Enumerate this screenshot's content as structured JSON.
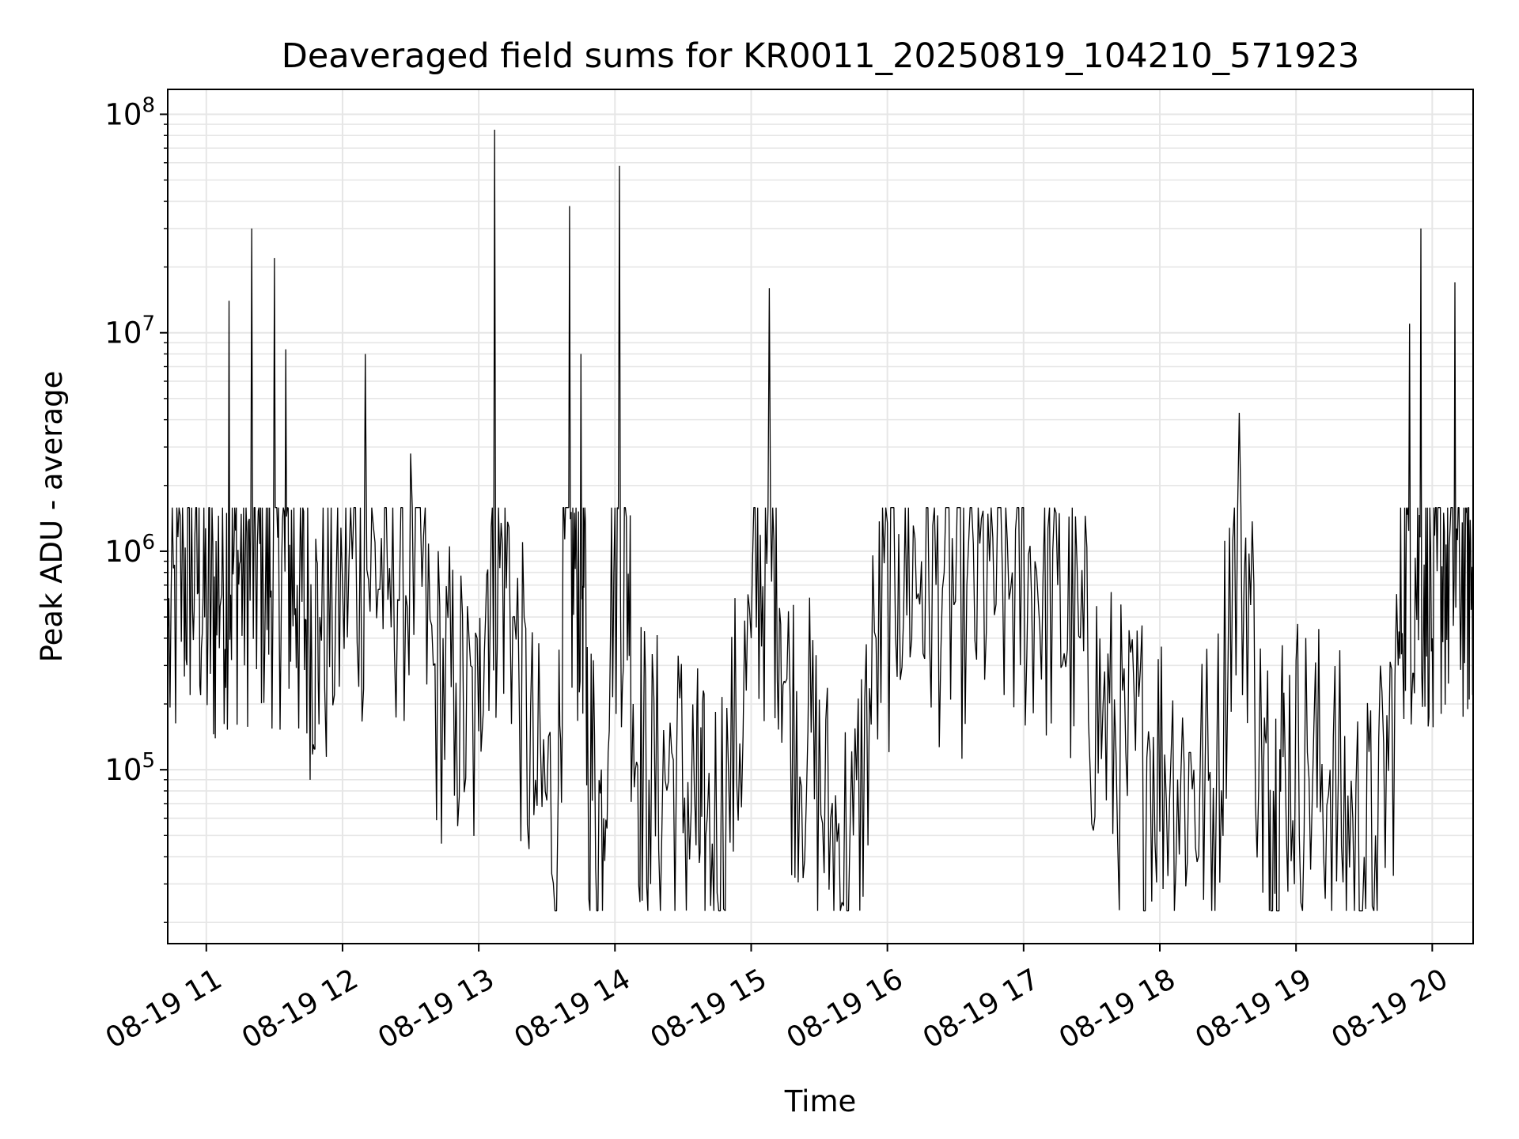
{
  "chart_data": {
    "type": "line",
    "title": "Deaveraged field sums for KR0011_20250819_104210_571923",
    "xlabel": "Time",
    "ylabel": "Peak ADU - average",
    "yscale": "log",
    "xlim": [
      "08-19 10:43",
      "08-19 20:18"
    ],
    "ylim": [
      16000,
      130000000
    ],
    "grid": true,
    "grid_minor": true,
    "line_color": "#000000",
    "grid_color": "#e6e6e6",
    "x_ticks": [
      "08-19 11",
      "08-19 12",
      "08-19 13",
      "08-19 14",
      "08-19 15",
      "08-19 16",
      "08-19 17",
      "08-19 18",
      "08-19 19",
      "08-19 20"
    ],
    "y_ticks": [
      {
        "base": "10",
        "exp": "5"
      },
      {
        "base": "10",
        "exp": "6"
      },
      {
        "base": "10",
        "exp": "7"
      },
      {
        "base": "10",
        "exp": "8"
      }
    ],
    "series": [
      {
        "x": [
          "08-19 10:43",
          "08-19 10:50",
          "08-19 10:55",
          "08-19 11:00",
          "08-19 11:05",
          "08-19 11:10",
          "08-19 11:15",
          "08-19 11:20",
          "08-19 11:25",
          "08-19 11:30",
          "08-19 11:35",
          "08-19 11:40",
          "08-19 11:45",
          "08-19 11:50",
          "08-19 12:00",
          "08-19 12:10",
          "08-19 12:20",
          "08-19 12:30",
          "08-19 12:40",
          "08-19 12:50",
          "08-19 13:00",
          "08-19 13:07",
          "08-19 13:15",
          "08-19 13:25",
          "08-19 13:35",
          "08-19 13:40",
          "08-19 13:45",
          "08-19 13:48",
          "08-19 13:55",
          "08-19 14:02",
          "08-19 14:08",
          "08-19 14:15",
          "08-19 14:25",
          "08-19 14:35",
          "08-19 14:40",
          "08-19 14:50",
          "08-19 15:00",
          "08-19 15:08",
          "08-19 15:15",
          "08-19 15:25",
          "08-19 15:35",
          "08-19 15:45",
          "08-19 15:55",
          "08-19 16:05",
          "08-19 16:15",
          "08-19 16:25",
          "08-19 16:35",
          "08-19 16:45",
          "08-19 16:55",
          "08-19 17:05",
          "08-19 17:15",
          "08-19 17:25",
          "08-19 17:35",
          "08-19 17:45",
          "08-19 17:55",
          "08-19 18:05",
          "08-19 18:15",
          "08-19 18:25",
          "08-19 18:35",
          "08-19 18:45",
          "08-19 18:50",
          "08-19 18:55",
          "08-19 19:05",
          "08-19 19:15",
          "08-19 19:25",
          "08-19 19:35",
          "08-19 19:45",
          "08-19 19:50",
          "08-19 19:55",
          "08-19 20:00",
          "08-19 20:05",
          "08-19 20:10",
          "08-19 20:15",
          "08-19 20:18"
        ],
        "y": [
          400000,
          900000,
          1200000,
          600000,
          700000,
          14000000,
          900000,
          30000000,
          800000,
          22000000,
          8400000,
          700000,
          600000,
          500000,
          700000,
          8000000,
          600000,
          2800000,
          300000,
          250000,
          150000,
          85000000,
          500000,
          90000,
          80000,
          38000000,
          8000000,
          150000,
          60000,
          58000000,
          200000,
          90000,
          120000,
          80000,
          50000,
          100000,
          400000,
          16000000,
          250000,
          150000,
          60000,
          50000,
          400000,
          1200000,
          900000,
          800000,
          700000,
          900000,
          800000,
          900000,
          700000,
          400000,
          200000,
          120000,
          150000,
          120000,
          100000,
          90000,
          4300000,
          100000,
          80000,
          150000,
          120000,
          100000,
          60000,
          50000,
          300000,
          11000000,
          30000000,
          400000,
          1500000,
          17000000,
          1500000,
          1200000
        ]
      }
    ]
  }
}
